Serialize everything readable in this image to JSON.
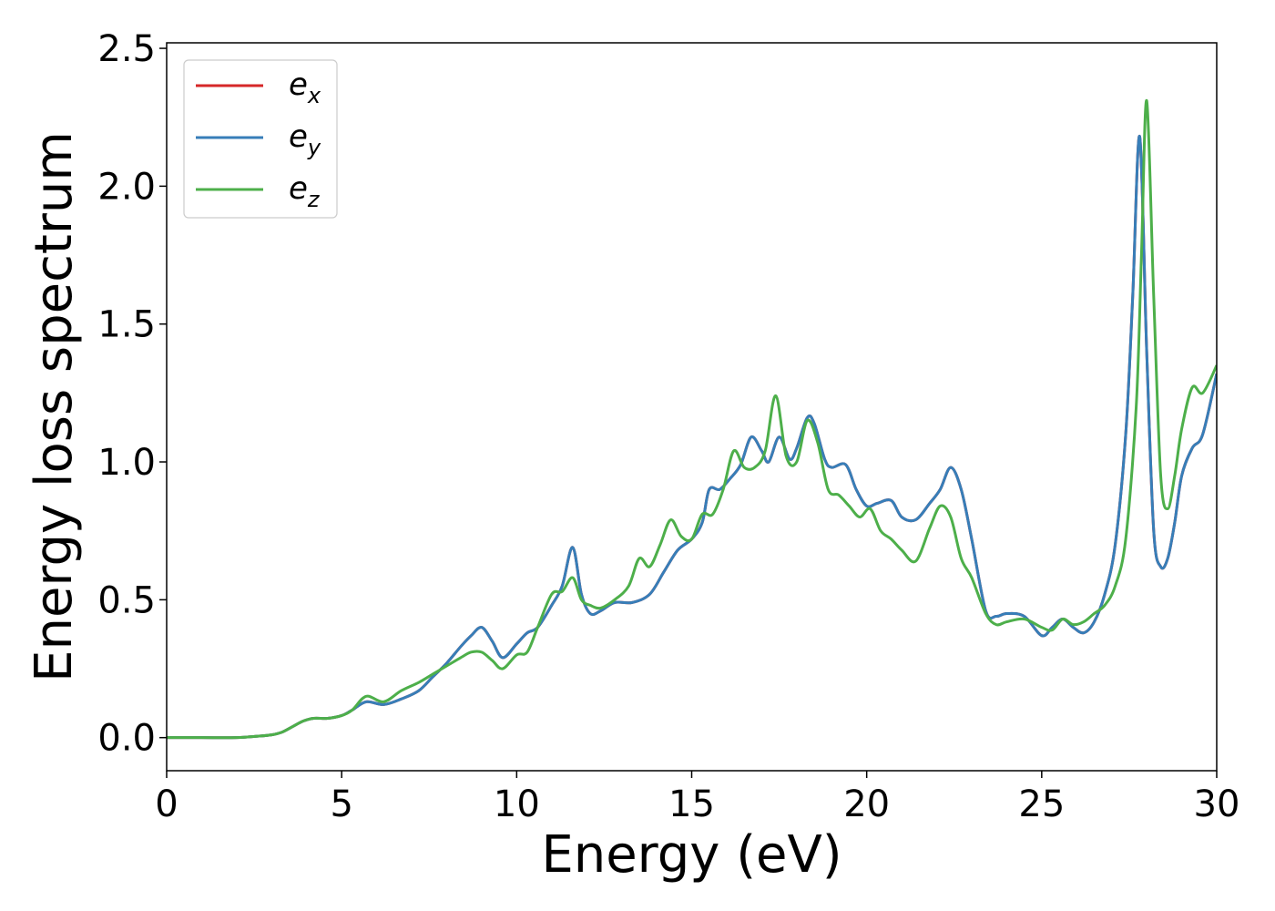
{
  "chart_data": {
    "type": "line",
    "xlabel": "Energy (eV)",
    "ylabel": "Energy loss spectrum",
    "xlim": [
      0,
      30
    ],
    "ylim": [
      -0.12,
      2.52
    ],
    "x_ticks": [
      0,
      5,
      10,
      15,
      20,
      25,
      30
    ],
    "x_tick_labels": [
      "0",
      "5",
      "10",
      "15",
      "20",
      "25",
      "30"
    ],
    "y_ticks": [
      0.0,
      0.5,
      1.0,
      1.5,
      2.0,
      2.5
    ],
    "y_tick_labels": [
      "0.0",
      "0.5",
      "1.0",
      "1.5",
      "2.0",
      "2.5"
    ],
    "grid": false,
    "legend_position": "top-left",
    "series": [
      {
        "name": "e",
        "subscript": "x",
        "color": "#d62728",
        "x": [
          0,
          1,
          2,
          2.6,
          3.0,
          3.3,
          3.6,
          3.9,
          4.2,
          4.6,
          5.0,
          5.3,
          5.7,
          6.2,
          6.7,
          7.2,
          7.6,
          8.0,
          8.4,
          8.7,
          9.0,
          9.3,
          9.6,
          10.0,
          10.3,
          10.6,
          11.0,
          11.3,
          11.6,
          11.85,
          12.1,
          12.4,
          12.8,
          13.3,
          13.8,
          14.2,
          14.6,
          15.0,
          15.3,
          15.5,
          15.8,
          16.1,
          16.4,
          16.7,
          17.0,
          17.2,
          17.5,
          17.8,
          18.0,
          18.3,
          18.5,
          18.8,
          19.0,
          19.4,
          19.7,
          20.0,
          20.3,
          20.7,
          21.0,
          21.4,
          21.8,
          22.1,
          22.4,
          22.7,
          23.0,
          23.4,
          23.7,
          24.0,
          24.5,
          25.0,
          25.3,
          25.6,
          25.9,
          26.2,
          26.5,
          26.8,
          27.1,
          27.4,
          27.6,
          27.8,
          28.0,
          28.2,
          28.4,
          28.6,
          28.8,
          29.0,
          29.3,
          29.6,
          30.0
        ],
        "y": [
          0.0,
          0.0,
          0.0,
          0.005,
          0.01,
          0.02,
          0.04,
          0.06,
          0.07,
          0.07,
          0.08,
          0.1,
          0.13,
          0.12,
          0.14,
          0.17,
          0.22,
          0.27,
          0.33,
          0.37,
          0.4,
          0.35,
          0.29,
          0.34,
          0.38,
          0.4,
          0.48,
          0.55,
          0.69,
          0.52,
          0.45,
          0.46,
          0.49,
          0.49,
          0.52,
          0.6,
          0.68,
          0.72,
          0.78,
          0.9,
          0.9,
          0.94,
          0.99,
          1.09,
          1.04,
          1.0,
          1.09,
          1.01,
          1.05,
          1.16,
          1.14,
          1.01,
          0.98,
          0.99,
          0.9,
          0.84,
          0.85,
          0.86,
          0.8,
          0.79,
          0.85,
          0.9,
          0.98,
          0.9,
          0.72,
          0.46,
          0.44,
          0.45,
          0.44,
          0.37,
          0.4,
          0.43,
          0.4,
          0.38,
          0.42,
          0.52,
          0.7,
          1.1,
          1.6,
          2.18,
          1.4,
          0.75,
          0.62,
          0.65,
          0.78,
          0.95,
          1.05,
          1.1,
          1.32
        ]
      },
      {
        "name": "e",
        "subscript": "y",
        "color": "#377eb8",
        "x": [
          0,
          1,
          2,
          2.6,
          3.0,
          3.3,
          3.6,
          3.9,
          4.2,
          4.6,
          5.0,
          5.3,
          5.7,
          6.2,
          6.7,
          7.2,
          7.6,
          8.0,
          8.4,
          8.7,
          9.0,
          9.3,
          9.6,
          10.0,
          10.3,
          10.6,
          11.0,
          11.3,
          11.6,
          11.85,
          12.1,
          12.4,
          12.8,
          13.3,
          13.8,
          14.2,
          14.6,
          15.0,
          15.3,
          15.5,
          15.8,
          16.1,
          16.4,
          16.7,
          17.0,
          17.2,
          17.5,
          17.8,
          18.0,
          18.3,
          18.5,
          18.8,
          19.0,
          19.4,
          19.7,
          20.0,
          20.3,
          20.7,
          21.0,
          21.4,
          21.8,
          22.1,
          22.4,
          22.7,
          23.0,
          23.4,
          23.7,
          24.0,
          24.5,
          25.0,
          25.3,
          25.6,
          25.9,
          26.2,
          26.5,
          26.8,
          27.1,
          27.4,
          27.6,
          27.8,
          28.0,
          28.2,
          28.4,
          28.6,
          28.8,
          29.0,
          29.3,
          29.6,
          30.0
        ],
        "y": [
          0.0,
          0.0,
          0.0,
          0.005,
          0.01,
          0.02,
          0.04,
          0.06,
          0.07,
          0.07,
          0.08,
          0.1,
          0.13,
          0.12,
          0.14,
          0.17,
          0.22,
          0.27,
          0.33,
          0.37,
          0.4,
          0.35,
          0.29,
          0.34,
          0.38,
          0.4,
          0.48,
          0.55,
          0.69,
          0.52,
          0.45,
          0.46,
          0.49,
          0.49,
          0.52,
          0.6,
          0.68,
          0.72,
          0.78,
          0.9,
          0.9,
          0.94,
          0.99,
          1.09,
          1.04,
          1.0,
          1.09,
          1.01,
          1.05,
          1.16,
          1.14,
          1.01,
          0.98,
          0.99,
          0.9,
          0.84,
          0.85,
          0.86,
          0.8,
          0.79,
          0.85,
          0.9,
          0.98,
          0.9,
          0.72,
          0.46,
          0.44,
          0.45,
          0.44,
          0.37,
          0.4,
          0.43,
          0.4,
          0.38,
          0.42,
          0.52,
          0.7,
          1.1,
          1.6,
          2.18,
          1.4,
          0.75,
          0.62,
          0.65,
          0.78,
          0.95,
          1.05,
          1.1,
          1.32
        ]
      },
      {
        "name": "e",
        "subscript": "z",
        "color": "#4daf4a",
        "x": [
          0,
          1,
          2,
          2.6,
          3.0,
          3.3,
          3.6,
          3.9,
          4.2,
          4.6,
          5.0,
          5.3,
          5.7,
          6.2,
          6.7,
          7.2,
          7.6,
          8.0,
          8.4,
          8.7,
          9.0,
          9.3,
          9.6,
          10.0,
          10.3,
          10.6,
          11.0,
          11.3,
          11.6,
          11.85,
          12.1,
          12.4,
          12.8,
          13.2,
          13.5,
          13.8,
          14.1,
          14.4,
          14.7,
          15.0,
          15.3,
          15.6,
          15.9,
          16.2,
          16.5,
          16.8,
          17.1,
          17.4,
          17.7,
          18.0,
          18.3,
          18.6,
          18.9,
          19.2,
          19.5,
          19.8,
          20.1,
          20.4,
          20.7,
          21.0,
          21.4,
          21.8,
          22.1,
          22.4,
          22.7,
          23.0,
          23.4,
          23.7,
          24.0,
          24.5,
          25.0,
          25.3,
          25.6,
          25.9,
          26.2,
          26.5,
          26.8,
          27.1,
          27.4,
          27.7,
          27.85,
          28.0,
          28.2,
          28.4,
          28.6,
          28.8,
          29.0,
          29.3,
          29.6,
          30.0
        ],
        "y": [
          0.0,
          0.0,
          0.0,
          0.005,
          0.01,
          0.02,
          0.04,
          0.06,
          0.07,
          0.07,
          0.08,
          0.1,
          0.15,
          0.13,
          0.17,
          0.2,
          0.23,
          0.26,
          0.29,
          0.31,
          0.31,
          0.28,
          0.25,
          0.3,
          0.31,
          0.4,
          0.52,
          0.53,
          0.58,
          0.5,
          0.48,
          0.47,
          0.5,
          0.55,
          0.65,
          0.62,
          0.7,
          0.79,
          0.73,
          0.72,
          0.81,
          0.81,
          0.9,
          1.04,
          0.98,
          0.98,
          1.04,
          1.24,
          1.02,
          1.0,
          1.15,
          1.07,
          0.9,
          0.88,
          0.84,
          0.8,
          0.83,
          0.75,
          0.72,
          0.68,
          0.64,
          0.76,
          0.84,
          0.8,
          0.65,
          0.58,
          0.45,
          0.41,
          0.42,
          0.43,
          0.4,
          0.39,
          0.43,
          0.41,
          0.42,
          0.45,
          0.48,
          0.55,
          0.72,
          1.2,
          1.75,
          2.31,
          1.6,
          0.95,
          0.83,
          0.95,
          1.12,
          1.27,
          1.25,
          1.35
        ]
      }
    ]
  }
}
